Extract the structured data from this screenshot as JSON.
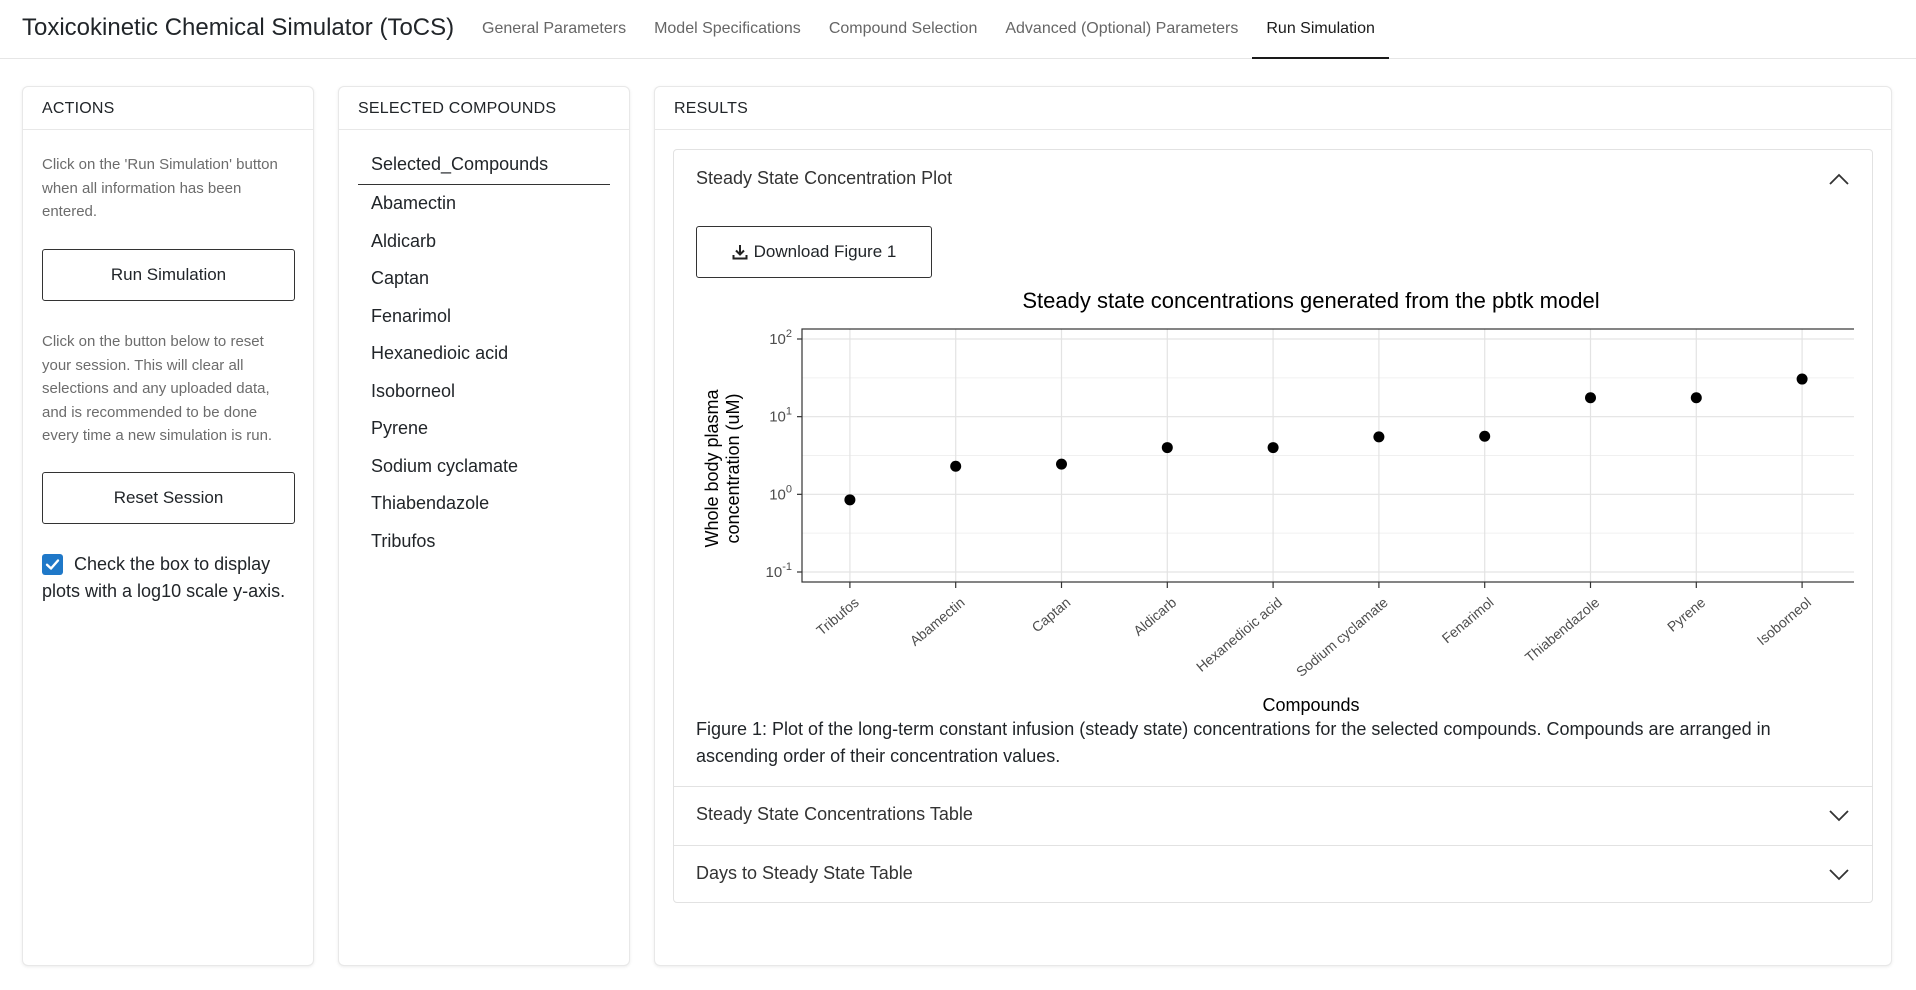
{
  "app": {
    "title": "Toxicokinetic Chemical Simulator (ToCS)",
    "tabs": [
      {
        "label": "General Parameters",
        "active": false
      },
      {
        "label": "Model Specifications",
        "active": false
      },
      {
        "label": "Compound Selection",
        "active": false
      },
      {
        "label": "Advanced (Optional) Parameters",
        "active": false
      },
      {
        "label": "Run Simulation",
        "active": true
      }
    ]
  },
  "actions": {
    "header": "ACTIONS",
    "run_help": "Click on the 'Run Simulation' button when all information has been entered.",
    "run_button": "Run Simulation",
    "reset_help": "Click on the button below to reset your session. This will clear all selections and any uploaded data, and is recommended to be done every time a new simulation is run.",
    "reset_button": "Reset Session",
    "log_checkbox_label": "Check the box to display plots with a log10 scale y-axis.",
    "log_checkbox_checked": true
  },
  "selected": {
    "header": "SELECTED COMPOUNDS",
    "column_header": "Selected_Compounds",
    "items": [
      "Abamectin",
      "Aldicarb",
      "Captan",
      "Fenarimol",
      "Hexanedioic acid",
      "Isoborneol",
      "Pyrene",
      "Sodium cyclamate",
      "Thiabendazole",
      "Tribufos"
    ]
  },
  "results": {
    "header": "RESULTS",
    "sections": [
      {
        "title": "Steady State Concentration Plot",
        "expanded": true
      },
      {
        "title": "Steady State Concentrations Table",
        "expanded": false
      },
      {
        "title": "Days to Steady State Table",
        "expanded": false
      }
    ],
    "download_button": "Download Figure 1",
    "caption": "Figure 1: Plot of the long-term constant infusion (steady state) concentrations for the selected compounds. Compounds are arranged in ascending order of their concentration values."
  },
  "chart_data": {
    "type": "scatter",
    "title": "Steady state concentrations generated from the pbtk model",
    "xlabel": "Compounds",
    "ylabel": "Whole body plasma concentration (uM)",
    "y_scale": "log10",
    "ylim": [
      0.1,
      100
    ],
    "y_ticks": [
      0.1,
      1,
      10,
      100
    ],
    "grid": true,
    "categories": [
      "Tribufos",
      "Abamectin",
      "Captan",
      "Aldicarb",
      "Hexanedioic acid",
      "Sodium cyclamate",
      "Fenarimol",
      "Thiabendazole",
      "Pyrene",
      "Isoborneol"
    ],
    "values": [
      0.85,
      2.3,
      2.45,
      4.0,
      4.0,
      5.5,
      5.6,
      17.5,
      17.5,
      30.5
    ],
    "marker_color": "#000000"
  }
}
